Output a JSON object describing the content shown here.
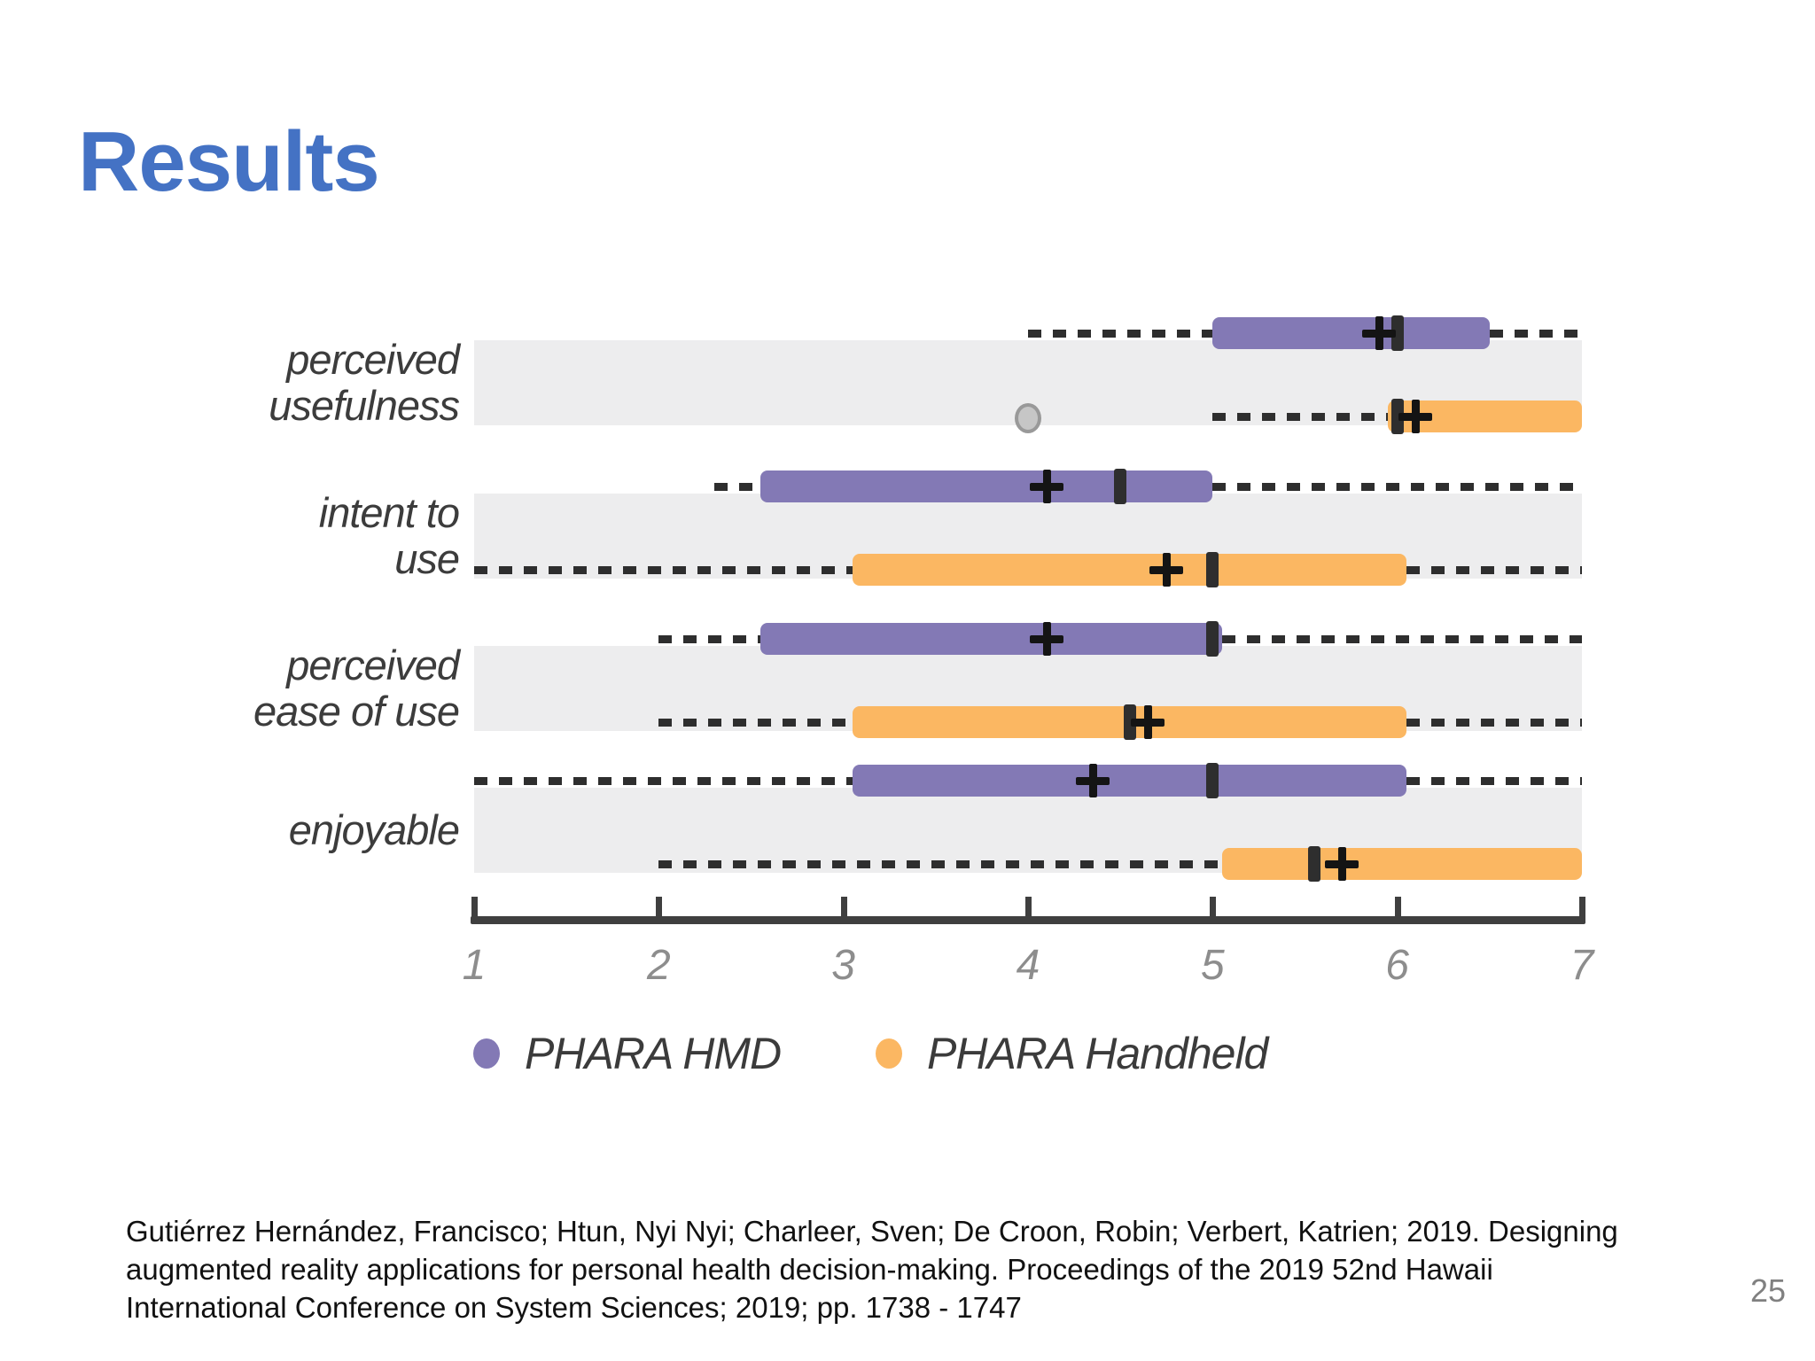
{
  "slide": {
    "title": "Results",
    "title_color": "#4472C4",
    "page_number": "25"
  },
  "citation": {
    "lines": [
      "Gutiérrez Hernández, Francisco; Htun, Nyi Nyi; Charleer, Sven; De Croon, Robin; Verbert, Katrien; 2019. Designing",
      "augmented reality applications for personal health decision-making. Proceedings of the 2019 52nd Hawaii",
      "International Conference on System Sciences; 2019; pp. 1738 - 1747"
    ]
  },
  "chart_data": {
    "type": "boxplot",
    "orientation": "horizontal",
    "axis": {
      "min": 1,
      "max": 7,
      "tick_labels": [
        "1",
        "2",
        "3",
        "4",
        "5",
        "6",
        "7"
      ]
    },
    "grid": "row-bands",
    "legend_position": "bottom",
    "categories": [
      {
        "label_lines": [
          "perceived",
          "usefulness"
        ]
      },
      {
        "label_lines": [
          "intent to",
          "use"
        ]
      },
      {
        "label_lines": [
          "perceived",
          "ease of use"
        ]
      },
      {
        "label_lines": [
          "enjoyable"
        ]
      }
    ],
    "series": [
      {
        "name": "PHARA HMD",
        "color": "#8379B5"
      },
      {
        "name": "PHARA Handheld",
        "color": "#FBB762"
      }
    ],
    "boxes": [
      {
        "category": 0,
        "series": 0,
        "whisker_low": 4.0,
        "q1": 5.0,
        "median": 6.0,
        "q3": 6.5,
        "whisker_high": 7.0,
        "mean": 5.9,
        "outliers": []
      },
      {
        "category": 0,
        "series": 1,
        "whisker_low": 5.0,
        "q1": 5.95,
        "median": 6.0,
        "q3": 7.0,
        "whisker_high": 7.0,
        "mean": 6.1,
        "outliers": [
          4.0
        ]
      },
      {
        "category": 1,
        "series": 0,
        "whisker_low": 2.3,
        "q1": 2.55,
        "median": 4.5,
        "q3": 5.0,
        "whisker_high": 7.0,
        "mean": 4.1,
        "outliers": []
      },
      {
        "category": 1,
        "series": 1,
        "whisker_low": 1.0,
        "q1": 3.05,
        "median": 5.0,
        "q3": 6.05,
        "whisker_high": 7.0,
        "mean": 4.75,
        "outliers": []
      },
      {
        "category": 2,
        "series": 0,
        "whisker_low": 2.0,
        "q1": 2.55,
        "median": 5.0,
        "q3": 5.05,
        "whisker_high": 7.0,
        "mean": 4.1,
        "outliers": []
      },
      {
        "category": 2,
        "series": 1,
        "whisker_low": 2.0,
        "q1": 3.05,
        "median": 4.55,
        "q3": 6.05,
        "whisker_high": 7.0,
        "mean": 4.65,
        "outliers": []
      },
      {
        "category": 3,
        "series": 0,
        "whisker_low": 1.0,
        "q1": 3.05,
        "median": 5.0,
        "q3": 6.05,
        "whisker_high": 7.0,
        "mean": 4.35,
        "outliers": []
      },
      {
        "category": 3,
        "series": 1,
        "whisker_low": 2.0,
        "q1": 5.05,
        "median": 5.55,
        "q3": 7.0,
        "whisker_high": 7.0,
        "mean": 5.7,
        "outliers": []
      }
    ],
    "colors": {
      "band": "#EDEDEE",
      "marker": "#2E2E2E",
      "axis": "#3F3F3F",
      "tick_label": "#8D8D8D",
      "category_label": "#3C3C3C",
      "legend_label": "#3B3B3B",
      "outlier_fill": "#C6C6C6",
      "outlier_stroke": "#999999"
    }
  }
}
